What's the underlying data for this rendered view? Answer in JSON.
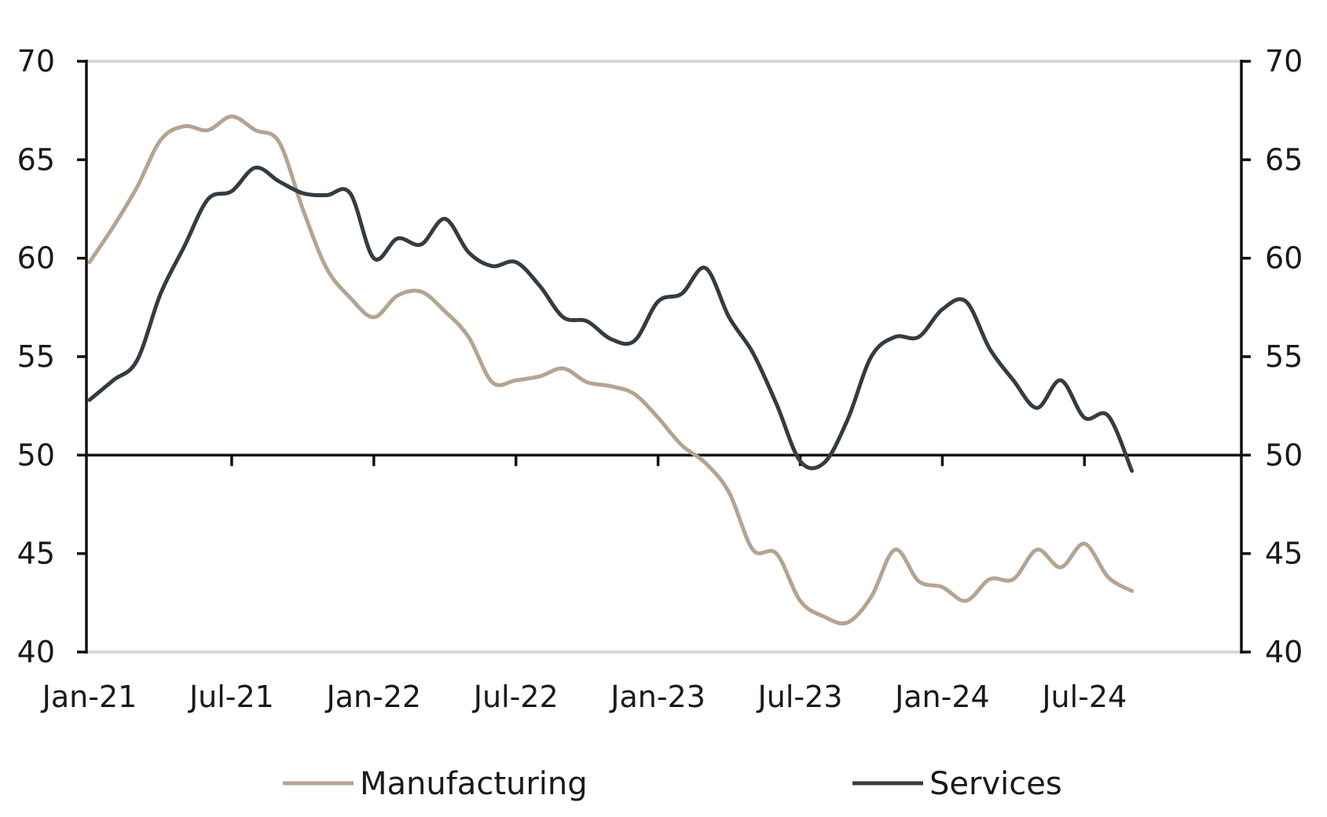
{
  "chart_data": {
    "type": "line",
    "title": "",
    "xlabel": "",
    "ylabel": "",
    "ylim": [
      40,
      70
    ],
    "y2lim": [
      40,
      70
    ],
    "yticks": [
      40,
      45,
      50,
      55,
      60,
      65,
      70
    ],
    "reference_line": 50,
    "grid": false,
    "legend_position": "bottom",
    "x_tick_labels": [
      "Jan-21",
      "Jul-21",
      "Jan-22",
      "Jul-22",
      "Jan-23",
      "Jul-23",
      "Jan-24",
      "Jul-24"
    ],
    "x": [
      "2021-01",
      "2021-02",
      "2021-03",
      "2021-04",
      "2021-05",
      "2021-06",
      "2021-07",
      "2021-08",
      "2021-09",
      "2021-10",
      "2021-11",
      "2021-12",
      "2022-01",
      "2022-02",
      "2022-03",
      "2022-04",
      "2022-05",
      "2022-06",
      "2022-07",
      "2022-08",
      "2022-09",
      "2022-10",
      "2022-11",
      "2022-12",
      "2023-01",
      "2023-02",
      "2023-03",
      "2023-04",
      "2023-05",
      "2023-06",
      "2023-07",
      "2023-08",
      "2023-09",
      "2023-10",
      "2023-11",
      "2023-12",
      "2024-01",
      "2024-02",
      "2024-03",
      "2024-04",
      "2024-05",
      "2024-06",
      "2024-07",
      "2024-08",
      "2024-09"
    ],
    "series": [
      {
        "name": "Manufacturing",
        "color": "#b5a48f",
        "values": [
          59.8,
          61.6,
          63.6,
          66.0,
          66.7,
          66.5,
          67.2,
          66.5,
          65.9,
          62.5,
          59.5,
          58.0,
          57.0,
          58.1,
          58.3,
          57.3,
          56.0,
          53.7,
          53.8,
          54.0,
          54.4,
          53.7,
          53.5,
          53.1,
          51.9,
          50.5,
          49.6,
          48.1,
          45.2,
          45.0,
          42.6,
          41.8,
          41.5,
          42.8,
          45.2,
          43.6,
          43.3,
          42.6,
          43.7,
          43.7,
          45.2,
          44.3,
          45.5,
          43.8,
          43.1
        ]
      },
      {
        "name": "Services",
        "color": "#333c43",
        "values": [
          52.8,
          53.8,
          54.8,
          58.2,
          60.6,
          63.0,
          63.4,
          64.6,
          63.9,
          63.3,
          63.2,
          63.3,
          60.0,
          61.0,
          60.7,
          62.0,
          60.3,
          59.6,
          59.8,
          58.6,
          57.0,
          56.8,
          55.9,
          55.8,
          57.8,
          58.2,
          59.5,
          57.0,
          55.2,
          52.6,
          49.7,
          49.6,
          51.8,
          55.0,
          56.0,
          56.0,
          57.4,
          57.8,
          55.4,
          53.8,
          52.4,
          53.8,
          51.9,
          52.0,
          49.2
        ]
      }
    ]
  }
}
